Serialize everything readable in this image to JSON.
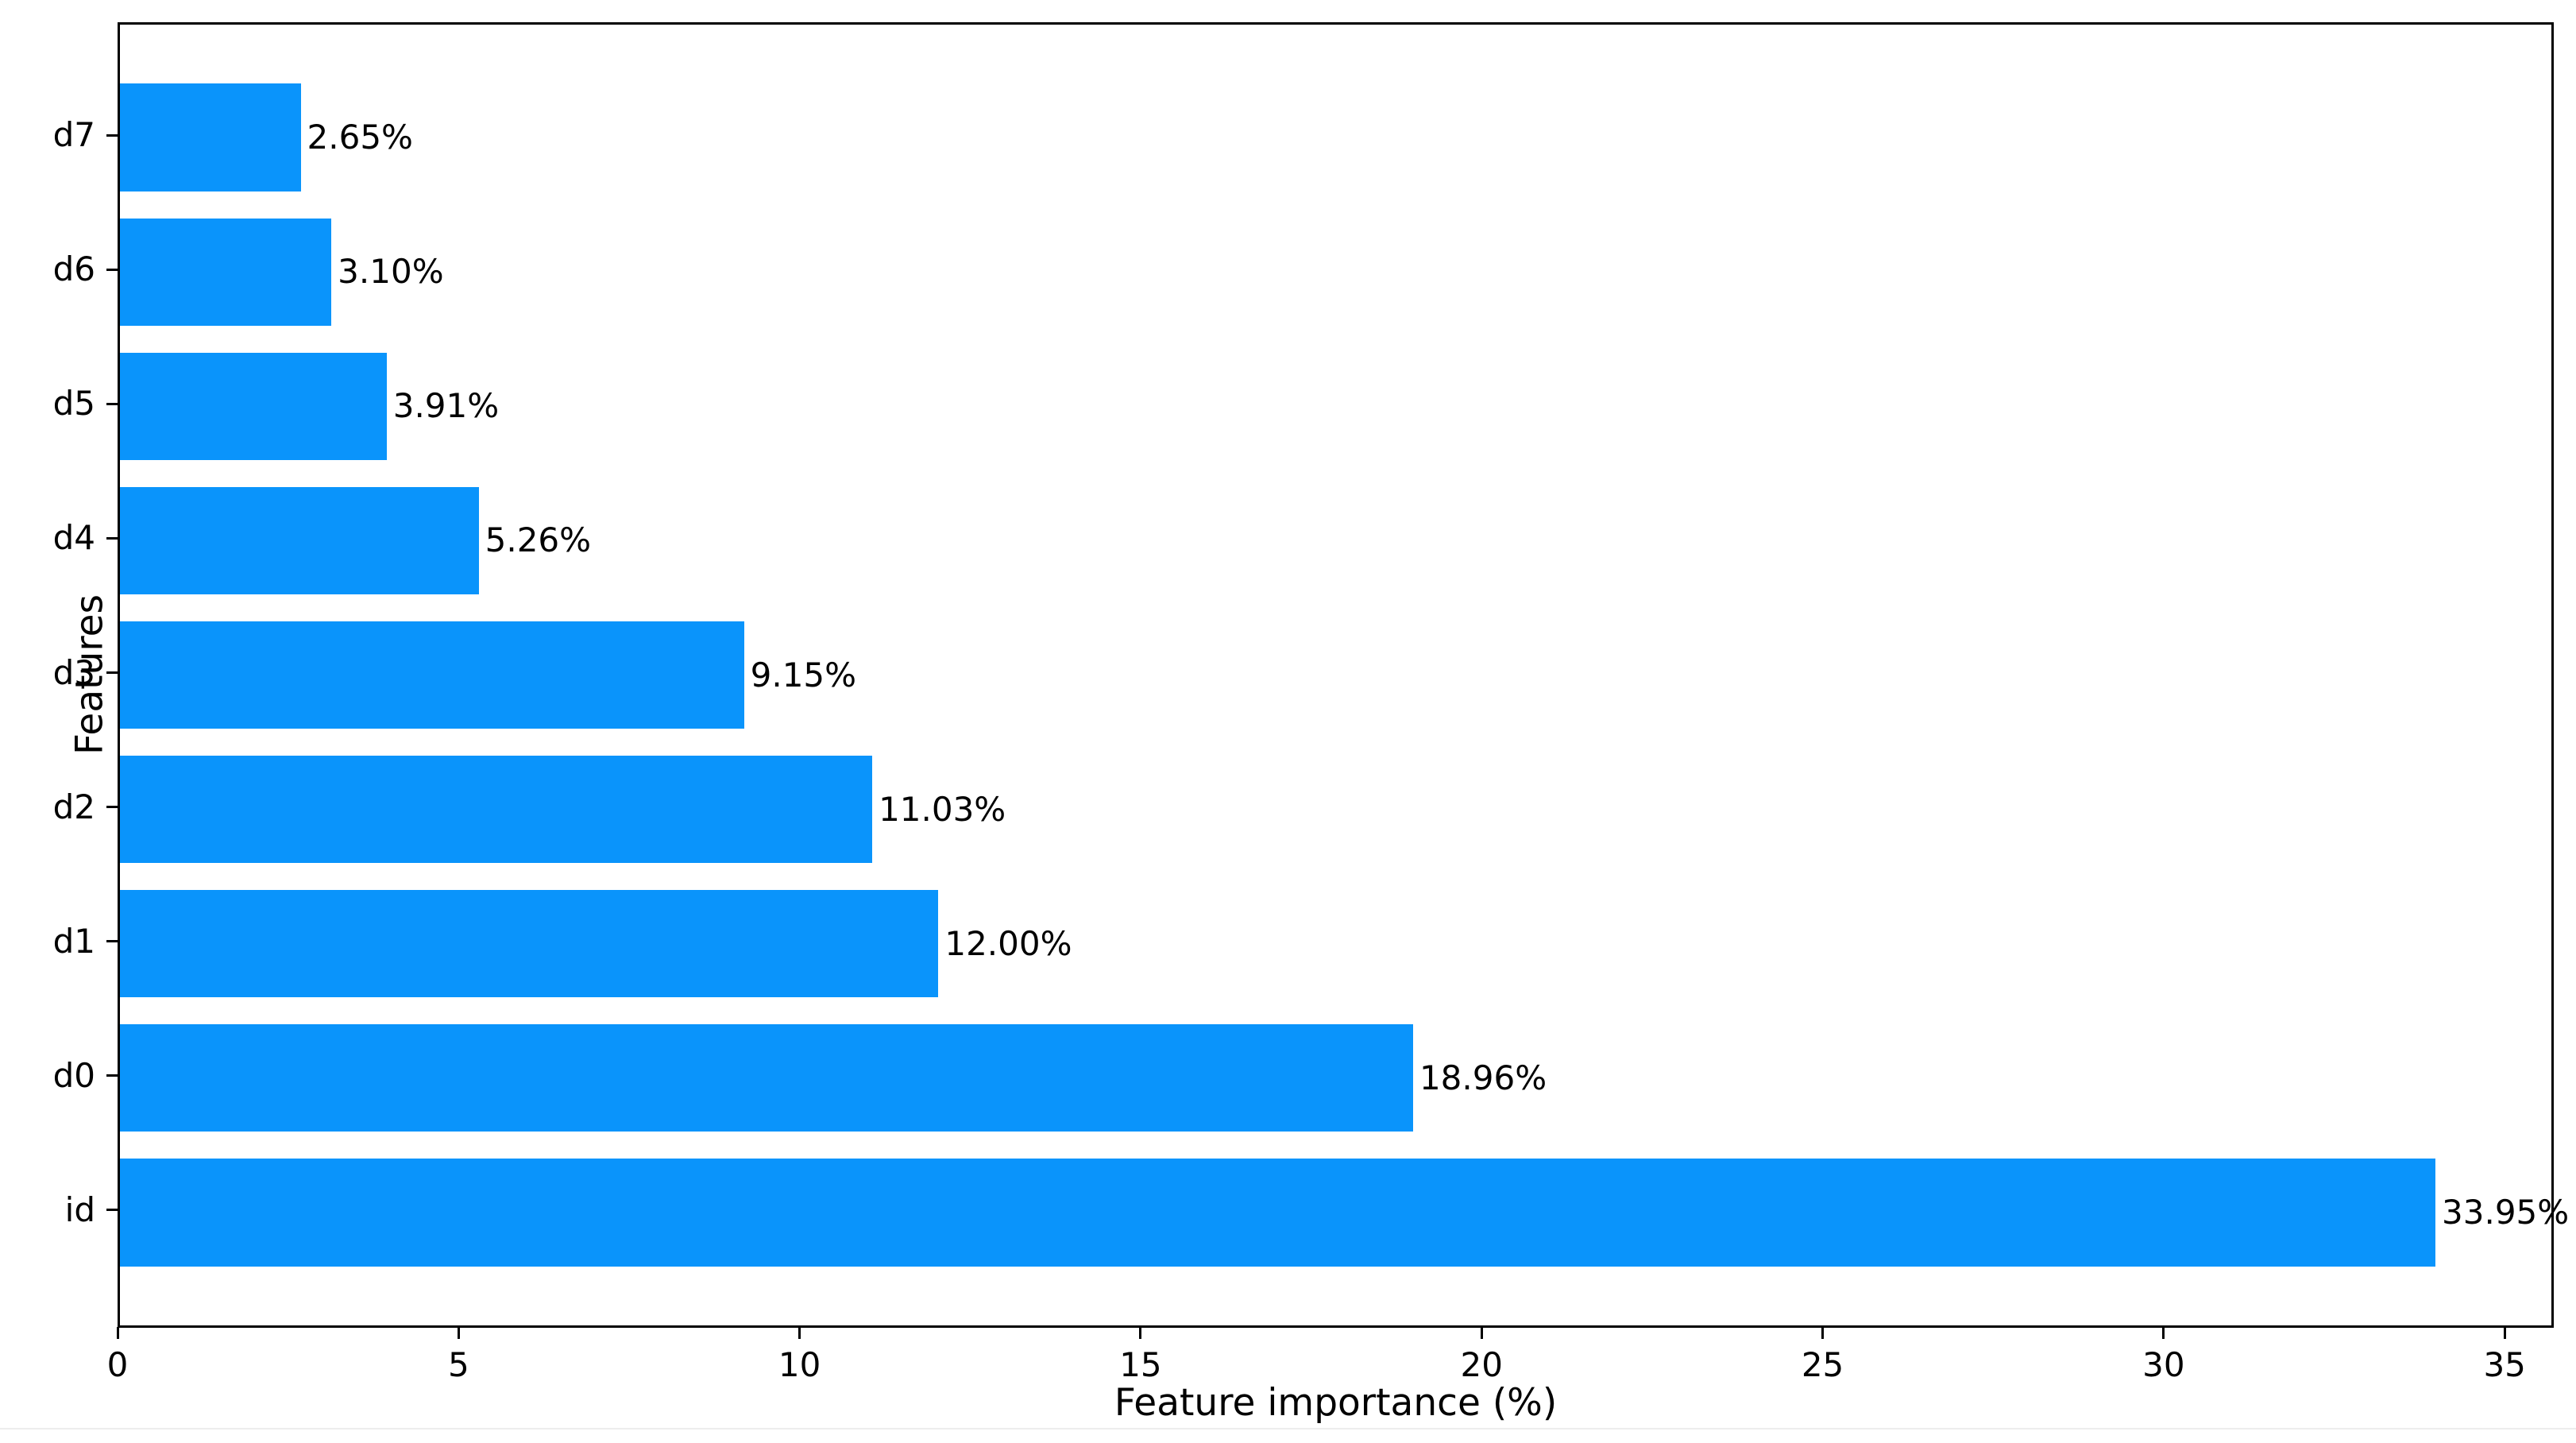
{
  "figure": {
    "background_color": "#ffffff",
    "bar_color": "#0a94fb",
    "spine_color": "#000000",
    "divider_color": "#ededed"
  },
  "chart_data": {
    "type": "bar",
    "orientation": "horizontal",
    "title": "",
    "xlabel": "Feature importance (%)",
    "ylabel": "Features",
    "categories_top_to_bottom": [
      "d7",
      "d6",
      "d5",
      "d4",
      "d3",
      "d2",
      "d1",
      "d0",
      "id"
    ],
    "values_top_to_bottom": [
      2.65,
      3.1,
      3.91,
      5.26,
      9.15,
      11.03,
      12.0,
      18.96,
      33.95
    ],
    "value_labels_top_to_bottom": [
      "2.65%",
      "3.10%",
      "3.91%",
      "5.26%",
      "9.15%",
      "11.03%",
      "12.00%",
      "18.96%",
      "33.95%"
    ],
    "x_ticks": [
      0,
      5,
      10,
      15,
      20,
      25,
      30,
      35
    ],
    "x_tick_labels": [
      "0",
      "5",
      "10",
      "15",
      "20",
      "25",
      "30",
      "35"
    ],
    "xlim": [
      0,
      35.65
    ],
    "grid": false,
    "legend": null,
    "bar_fraction_of_slot": 0.8,
    "axis_margin_fraction": 0.05
  }
}
